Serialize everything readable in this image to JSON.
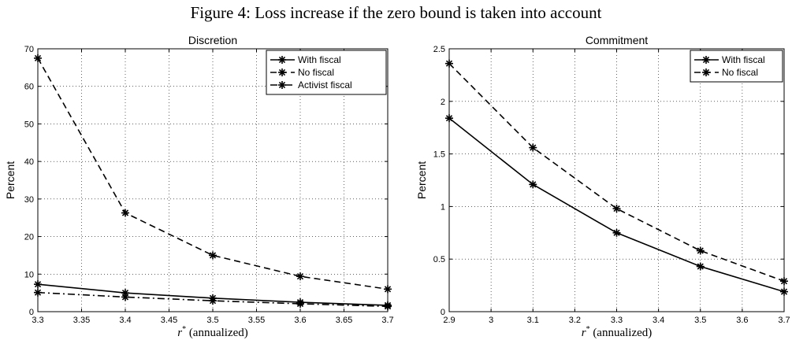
{
  "figure": {
    "title": "Figure 4: Loss increase if the zero bound is taken into account"
  },
  "chart_data": [
    {
      "type": "line",
      "title": "Discretion",
      "xlabel_var": "r",
      "xlabel_sup": "*",
      "xlabel_rest": "(annualized)",
      "ylabel": "Percent",
      "xlim": [
        3.3,
        3.7
      ],
      "ylim": [
        0,
        70
      ],
      "xticks": [
        3.3,
        3.35,
        3.4,
        3.45,
        3.5,
        3.55,
        3.6,
        3.65,
        3.7
      ],
      "xtick_labels": [
        "3.3",
        "3.35",
        "3.4",
        "3.45",
        "3.5",
        "3.55",
        "3.6",
        "3.65",
        "3.7"
      ],
      "yticks": [
        0,
        10,
        20,
        30,
        40,
        50,
        60,
        70
      ],
      "ytick_labels": [
        "0",
        "10",
        "20",
        "30",
        "40",
        "50",
        "60",
        "70"
      ],
      "grid": true,
      "legend_position": "top-right",
      "x": [
        3.3,
        3.4,
        3.5,
        3.6,
        3.7
      ],
      "series": [
        {
          "name": "With fiscal",
          "style": "solid",
          "values": [
            7.3,
            5.0,
            3.6,
            2.5,
            1.7
          ]
        },
        {
          "name": "No fiscal",
          "style": "dashed",
          "values": [
            67.5,
            26.3,
            15.0,
            9.4,
            6.0
          ]
        },
        {
          "name": "Activist fiscal",
          "style": "dashdot",
          "values": [
            5.1,
            3.9,
            2.9,
            2.1,
            1.4
          ]
        }
      ]
    },
    {
      "type": "line",
      "title": "Commitment",
      "xlabel_var": "r",
      "xlabel_sup": "*",
      "xlabel_rest": "(annualized)",
      "ylabel": "Percent",
      "xlim": [
        2.9,
        3.7
      ],
      "ylim": [
        0,
        2.5
      ],
      "xticks": [
        2.9,
        3.0,
        3.1,
        3.2,
        3.3,
        3.4,
        3.5,
        3.6,
        3.7
      ],
      "xtick_labels": [
        "2.9",
        "3",
        "3.1",
        "3.2",
        "3.3",
        "3.4",
        "3.5",
        "3.6",
        "3.7"
      ],
      "yticks": [
        0,
        0.5,
        1.0,
        1.5,
        2.0,
        2.5
      ],
      "ytick_labels": [
        "0",
        "0.5",
        "1",
        "1.5",
        "2",
        "2.5"
      ],
      "grid": true,
      "legend_position": "top-right",
      "x": [
        2.9,
        3.1,
        3.3,
        3.5,
        3.7
      ],
      "series": [
        {
          "name": "With fiscal",
          "style": "solid",
          "values": [
            1.84,
            1.21,
            0.75,
            0.43,
            0.19
          ]
        },
        {
          "name": "No fiscal",
          "style": "dashed",
          "values": [
            2.36,
            1.56,
            0.98,
            0.58,
            0.29
          ]
        }
      ]
    }
  ]
}
